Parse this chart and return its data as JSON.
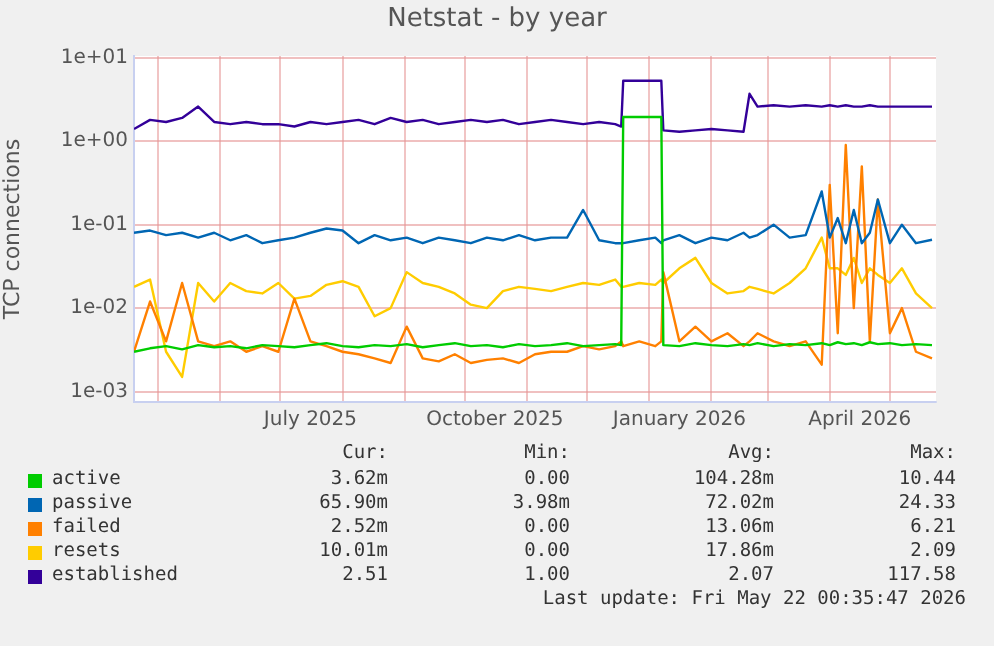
{
  "chart_data": {
    "type": "line",
    "title": "Netstat - by year",
    "ylabel": "TCP connections",
    "log": "y",
    "grid": true,
    "legend": "bottom",
    "marker": "none",
    "line_style": "solid",
    "x": [
      "2025-04-19",
      "2025-04-27",
      "2025-05-05",
      "2025-05-13",
      "2025-05-21",
      "2025-05-29",
      "2025-06-06",
      "2025-06-14",
      "2025-06-22",
      "2025-06-30",
      "2025-07-08",
      "2025-07-16",
      "2025-07-24",
      "2025-08-01",
      "2025-08-09",
      "2025-08-17",
      "2025-08-25",
      "2025-09-02",
      "2025-09-10",
      "2025-09-18",
      "2025-09-26",
      "2025-10-04",
      "2025-10-12",
      "2025-10-20",
      "2025-10-28",
      "2025-11-05",
      "2025-11-13",
      "2025-11-21",
      "2025-11-29",
      "2025-12-07",
      "2025-12-15",
      "2025-12-18",
      "2025-12-19",
      "2025-12-27",
      "2026-01-04",
      "2026-01-07",
      "2026-01-08",
      "2026-01-16",
      "2026-01-24",
      "2026-02-01",
      "2026-02-09",
      "2026-02-17",
      "2026-02-20",
      "2026-02-24",
      "2026-03-04",
      "2026-03-12",
      "2026-03-20",
      "2026-03-28",
      "2026-04-01",
      "2026-04-05",
      "2026-04-09",
      "2026-04-13",
      "2026-04-17",
      "2026-04-21",
      "2026-04-25",
      "2026-05-01",
      "2026-05-07",
      "2026-05-14",
      "2026-05-22"
    ],
    "xlim": [
      "2025-04-19",
      "2026-05-24"
    ],
    "xticks": [
      {
        "value": "2025-05-01",
        "label": null
      },
      {
        "value": "2025-06-01",
        "label": null
      },
      {
        "value": "2025-07-01",
        "label": null
      },
      {
        "value": "2025-07-16",
        "label": "July 2025"
      },
      {
        "value": "2025-08-01",
        "label": null
      },
      {
        "value": "2025-09-01",
        "label": null
      },
      {
        "value": "2025-10-01",
        "label": null
      },
      {
        "value": "2025-10-16",
        "label": "October 2025"
      },
      {
        "value": "2025-11-01",
        "label": null
      },
      {
        "value": "2025-12-01",
        "label": null
      },
      {
        "value": "2026-01-01",
        "label": null
      },
      {
        "value": "2026-01-16",
        "label": "January 2026"
      },
      {
        "value": "2026-02-01",
        "label": null
      },
      {
        "value": "2026-03-01",
        "label": null
      },
      {
        "value": "2026-04-01",
        "label": null
      },
      {
        "value": "2026-04-16",
        "label": "April 2026"
      },
      {
        "value": "2026-05-01",
        "label": null
      }
    ],
    "ylim": [
      0.00075,
      10.5
    ],
    "yticks": [
      {
        "value": 0.001,
        "label": "1e-03"
      },
      {
        "value": 0.01,
        "label": "1e-02"
      },
      {
        "value": 0.1,
        "label": "1e-01"
      },
      {
        "value": 1,
        "label": "1e+00"
      },
      {
        "value": 10,
        "label": "1e+01"
      }
    ],
    "series": [
      {
        "name": "active",
        "color": "#00cc00",
        "values": [
          0.003,
          0.0033,
          0.0035,
          0.0032,
          0.0036,
          0.0034,
          0.0035,
          0.0033,
          0.0036,
          0.0035,
          0.0034,
          0.0036,
          0.0038,
          0.0035,
          0.0034,
          0.0036,
          0.0035,
          0.0037,
          0.0034,
          0.0036,
          0.0038,
          0.0035,
          0.0036,
          0.0034,
          0.0037,
          0.0035,
          0.0036,
          0.0038,
          0.0035,
          0.0036,
          0.0037,
          0.0036,
          1.95,
          1.95,
          1.95,
          1.95,
          0.0036,
          0.0035,
          0.0038,
          0.0036,
          0.0035,
          0.0037,
          0.0036,
          0.0038,
          0.0035,
          0.0037,
          0.0036,
          0.0038,
          0.0036,
          0.0039,
          0.0037,
          0.0038,
          0.0036,
          0.0039,
          0.0037,
          0.0038,
          0.0036,
          0.0037,
          0.0036
        ]
      },
      {
        "name": "passive",
        "color": "#0066b3",
        "values": [
          0.08,
          0.085,
          0.075,
          0.08,
          0.07,
          0.08,
          0.065,
          0.075,
          0.06,
          0.065,
          0.07,
          0.08,
          0.09,
          0.085,
          0.06,
          0.075,
          0.065,
          0.07,
          0.06,
          0.07,
          0.065,
          0.06,
          0.07,
          0.065,
          0.075,
          0.065,
          0.07,
          0.07,
          0.15,
          0.065,
          0.06,
          0.06,
          0.06,
          0.065,
          0.07,
          0.06,
          0.065,
          0.075,
          0.06,
          0.07,
          0.065,
          0.08,
          0.07,
          0.075,
          0.1,
          0.07,
          0.075,
          0.25,
          0.07,
          0.12,
          0.06,
          0.15,
          0.06,
          0.08,
          0.2,
          0.06,
          0.1,
          0.06,
          0.066
        ]
      },
      {
        "name": "failed",
        "color": "#ff8000",
        "values": [
          0.003,
          0.012,
          0.004,
          0.02,
          0.004,
          0.0035,
          0.004,
          0.003,
          0.0035,
          0.003,
          0.013,
          0.004,
          0.0035,
          0.003,
          0.0028,
          0.0025,
          0.0022,
          0.006,
          0.0025,
          0.0023,
          0.0028,
          0.0022,
          0.0024,
          0.0025,
          0.0022,
          0.0028,
          0.003,
          0.003,
          0.0035,
          0.0032,
          0.0035,
          0.004,
          0.0035,
          0.004,
          0.0035,
          0.004,
          0.027,
          0.004,
          0.006,
          0.004,
          0.005,
          0.0035,
          0.004,
          0.005,
          0.004,
          0.0035,
          0.004,
          0.0021,
          0.3,
          0.005,
          0.9,
          0.01,
          0.5,
          0.004,
          0.2,
          0.005,
          0.01,
          0.003,
          0.0025
        ]
      },
      {
        "name": "resets",
        "color": "#ffcc00",
        "values": [
          0.018,
          0.022,
          0.003,
          0.0015,
          0.02,
          0.012,
          0.02,
          0.016,
          0.015,
          0.02,
          0.013,
          0.014,
          0.019,
          0.021,
          0.018,
          0.008,
          0.01,
          0.027,
          0.02,
          0.018,
          0.015,
          0.011,
          0.01,
          0.016,
          0.018,
          0.017,
          0.016,
          0.018,
          0.02,
          0.019,
          0.022,
          0.018,
          0.018,
          0.02,
          0.019,
          0.022,
          0.02,
          0.03,
          0.04,
          0.02,
          0.015,
          0.016,
          0.018,
          0.017,
          0.015,
          0.02,
          0.03,
          0.07,
          0.03,
          0.03,
          0.025,
          0.04,
          0.02,
          0.03,
          0.025,
          0.02,
          0.03,
          0.015,
          0.01
        ]
      },
      {
        "name": "established",
        "color": "#330099",
        "values": [
          1.4,
          1.8,
          1.7,
          1.9,
          2.6,
          1.7,
          1.6,
          1.7,
          1.6,
          1.6,
          1.5,
          1.7,
          1.6,
          1.7,
          1.8,
          1.6,
          1.9,
          1.7,
          1.8,
          1.6,
          1.7,
          1.8,
          1.7,
          1.8,
          1.6,
          1.7,
          1.8,
          1.7,
          1.6,
          1.7,
          1.6,
          1.5,
          5.3,
          5.3,
          5.3,
          5.3,
          1.35,
          1.3,
          1.35,
          1.4,
          1.35,
          1.3,
          3.7,
          2.6,
          2.7,
          2.6,
          2.7,
          2.6,
          2.7,
          2.6,
          2.7,
          2.6,
          2.6,
          2.7,
          2.6,
          2.6,
          2.6,
          2.6,
          2.6
        ]
      }
    ],
    "annotations": [
      "Cur:",
      "Min:",
      "Avg:",
      "Max:",
      "3.62m",
      "0.00",
      "104.28m",
      "10.44",
      "65.90m",
      "3.98m",
      "72.02m",
      "24.33",
      "2.52m",
      "0.00",
      "13.06m",
      "6.21",
      "10.01m",
      "0.00",
      "17.86m",
      "2.09",
      "2.51",
      "1.00",
      "2.07",
      "117.58",
      "Last update: Fri May 22 00:35:47 2026"
    ]
  }
}
